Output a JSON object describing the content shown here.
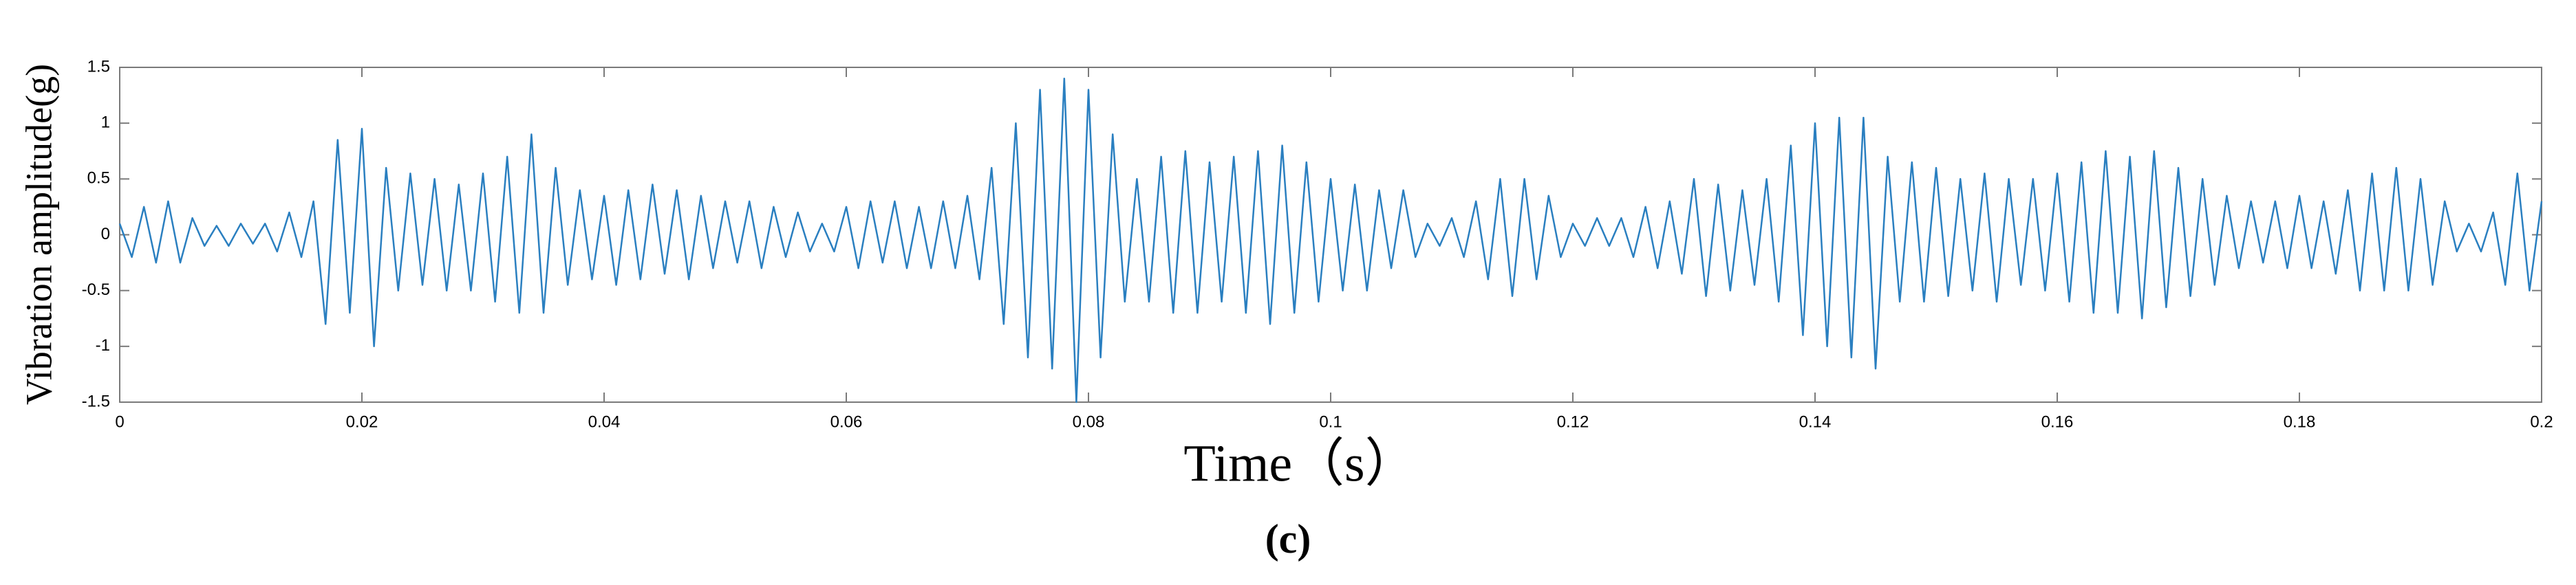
{
  "chart_data": {
    "type": "line",
    "x_label": "Time（s）",
    "y_label": "Vibration amplitude(g)",
    "caption": "(c)",
    "xlim": [
      0,
      0.2
    ],
    "ylim": [
      -1.5,
      1.5
    ],
    "xticks": [
      0,
      0.02,
      0.04,
      0.06,
      0.08,
      0.1,
      0.12,
      0.14,
      0.16,
      0.18,
      0.2
    ],
    "yticks": [
      -1.5,
      -1,
      -0.5,
      0,
      0.5,
      1,
      1.5
    ],
    "grid": false,
    "x": [
      0,
      0.001,
      0.002,
      0.003,
      0.004,
      0.005,
      0.006,
      0.007,
      0.008,
      0.009,
      0.01,
      0.011,
      0.012,
      0.013,
      0.014,
      0.015,
      0.016,
      0.017,
      0.018,
      0.019,
      0.02,
      0.021,
      0.022,
      0.023,
      0.024,
      0.025,
      0.026,
      0.027,
      0.028,
      0.029,
      0.03,
      0.031,
      0.032,
      0.033,
      0.034,
      0.035,
      0.036,
      0.037,
      0.038,
      0.039,
      0.04,
      0.041,
      0.042,
      0.043,
      0.044,
      0.045,
      0.046,
      0.047,
      0.048,
      0.049,
      0.05,
      0.051,
      0.052,
      0.053,
      0.054,
      0.055,
      0.056,
      0.057,
      0.058,
      0.059,
      0.06,
      0.061,
      0.062,
      0.063,
      0.064,
      0.065,
      0.066,
      0.067,
      0.068,
      0.069,
      0.07,
      0.071,
      0.072,
      0.073,
      0.074,
      0.075,
      0.076,
      0.077,
      0.078,
      0.079,
      0.08,
      0.081,
      0.082,
      0.083,
      0.084,
      0.085,
      0.086,
      0.087,
      0.088,
      0.089,
      0.09,
      0.091,
      0.092,
      0.093,
      0.094,
      0.095,
      0.096,
      0.097,
      0.098,
      0.099,
      0.1,
      0.101,
      0.102,
      0.103,
      0.104,
      0.105,
      0.106,
      0.107,
      0.108,
      0.109,
      0.11,
      0.111,
      0.112,
      0.113,
      0.114,
      0.115,
      0.116,
      0.117,
      0.118,
      0.119,
      0.12,
      0.121,
      0.122,
      0.123,
      0.124,
      0.125,
      0.126,
      0.127,
      0.128,
      0.129,
      0.13,
      0.131,
      0.132,
      0.133,
      0.134,
      0.135,
      0.136,
      0.137,
      0.138,
      0.139,
      0.14,
      0.141,
      0.142,
      0.143,
      0.144,
      0.145,
      0.146,
      0.147,
      0.148,
      0.149,
      0.15,
      0.151,
      0.152,
      0.153,
      0.154,
      0.155,
      0.156,
      0.157,
      0.158,
      0.159,
      0.16,
      0.161,
      0.162,
      0.163,
      0.164,
      0.165,
      0.166,
      0.167,
      0.168,
      0.169,
      0.17,
      0.171,
      0.172,
      0.173,
      0.174,
      0.175,
      0.176,
      0.177,
      0.178,
      0.179,
      0.18,
      0.181,
      0.182,
      0.183,
      0.184,
      0.185,
      0.186,
      0.187,
      0.188,
      0.189,
      0.19,
      0.191,
      0.192,
      0.193,
      0.194,
      0.195,
      0.196,
      0.197,
      0.198,
      0.199,
      0.2
    ],
    "series": [
      {
        "color": "#2a7fc0",
        "values": [
          0.1,
          -0.2,
          0.25,
          -0.25,
          0.3,
          -0.25,
          0.15,
          -0.1,
          0.08,
          -0.1,
          0.1,
          -0.08,
          0.1,
          -0.15,
          0.2,
          -0.2,
          0.3,
          -0.8,
          0.85,
          -0.7,
          0.95,
          -1.0,
          0.6,
          -0.5,
          0.55,
          -0.45,
          0.5,
          -0.5,
          0.45,
          -0.5,
          0.55,
          -0.6,
          0.7,
          -0.7,
          0.9,
          -0.7,
          0.6,
          -0.45,
          0.4,
          -0.4,
          0.35,
          -0.45,
          0.4,
          -0.4,
          0.45,
          -0.35,
          0.4,
          -0.4,
          0.35,
          -0.3,
          0.3,
          -0.25,
          0.3,
          -0.3,
          0.25,
          -0.2,
          0.2,
          -0.15,
          0.1,
          -0.15,
          0.25,
          -0.3,
          0.3,
          -0.25,
          0.3,
          -0.3,
          0.25,
          -0.3,
          0.3,
          -0.3,
          0.35,
          -0.4,
          0.6,
          -0.8,
          1.0,
          -1.1,
          1.3,
          -1.2,
          1.4,
          -1.5,
          1.3,
          -1.1,
          0.9,
          -0.6,
          0.5,
          -0.6,
          0.7,
          -0.7,
          0.75,
          -0.7,
          0.65,
          -0.6,
          0.7,
          -0.7,
          0.75,
          -0.8,
          0.8,
          -0.7,
          0.65,
          -0.6,
          0.5,
          -0.5,
          0.45,
          -0.5,
          0.4,
          -0.3,
          0.4,
          -0.2,
          0.1,
          -0.1,
          0.15,
          -0.2,
          0.3,
          -0.4,
          0.5,
          -0.55,
          0.5,
          -0.4,
          0.35,
          -0.2,
          0.1,
          -0.1,
          0.15,
          -0.1,
          0.15,
          -0.2,
          0.25,
          -0.3,
          0.3,
          -0.35,
          0.5,
          -0.55,
          0.45,
          -0.5,
          0.4,
          -0.45,
          0.5,
          -0.6,
          0.8,
          -0.9,
          1.0,
          -1.0,
          1.05,
          -1.1,
          1.05,
          -1.2,
          0.7,
          -0.6,
          0.65,
          -0.6,
          0.6,
          -0.55,
          0.5,
          -0.5,
          0.55,
          -0.6,
          0.5,
          -0.45,
          0.5,
          -0.5,
          0.55,
          -0.6,
          0.65,
          -0.7,
          0.75,
          -0.7,
          0.7,
          -0.75,
          0.75,
          -0.65,
          0.6,
          -0.55,
          0.5,
          -0.45,
          0.35,
          -0.3,
          0.3,
          -0.25,
          0.3,
          -0.3,
          0.35,
          -0.3,
          0.3,
          -0.35,
          0.4,
          -0.5,
          0.55,
          -0.5,
          0.6,
          -0.5,
          0.5,
          -0.45,
          0.3,
          -0.15,
          0.1,
          -0.15,
          0.2,
          -0.45,
          0.55,
          -0.5,
          0.3
        ]
      }
    ]
  }
}
